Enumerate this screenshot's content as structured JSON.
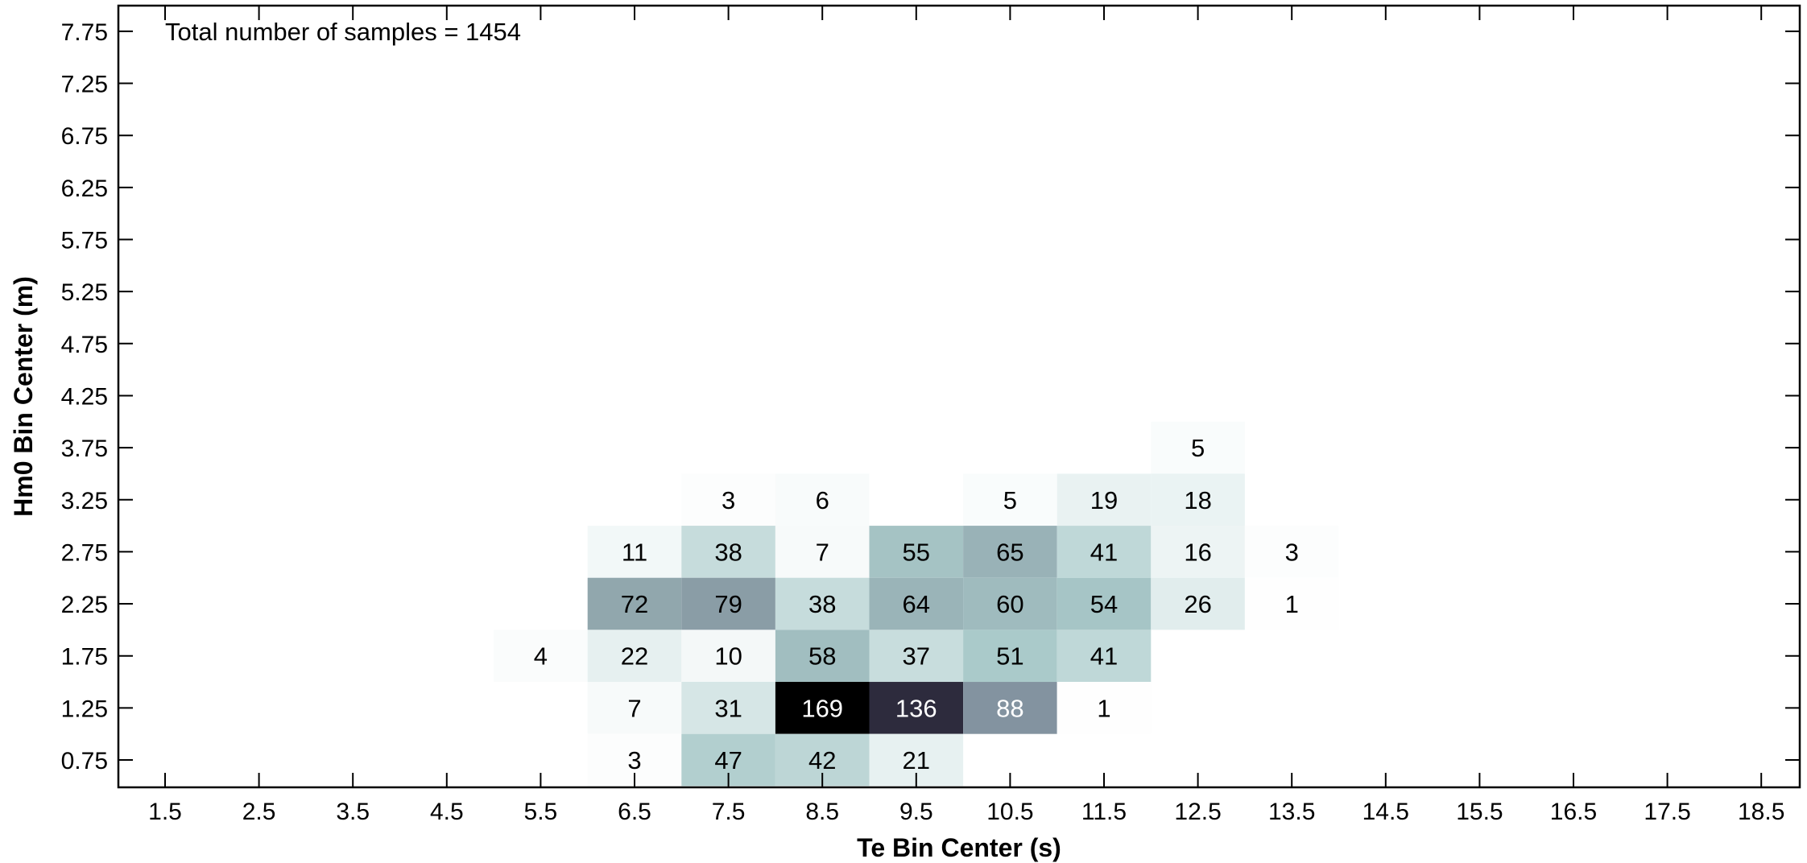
{
  "chart_data": {
    "type": "heatmap",
    "title": "",
    "xlabel": "Te Bin Center (s)",
    "ylabel": "Hm0 Bin Center (m)",
    "annotation": "Total number of samples = 1454",
    "x_ticks": [
      1.5,
      2.5,
      3.5,
      4.5,
      5.5,
      6.5,
      7.5,
      8.5,
      9.5,
      10.5,
      11.5,
      12.5,
      13.5,
      14.5,
      15.5,
      16.5,
      17.5,
      18.5
    ],
    "y_ticks": [
      0.75,
      1.25,
      1.75,
      2.25,
      2.75,
      3.25,
      3.75,
      4.25,
      4.75,
      5.25,
      5.75,
      6.25,
      6.75,
      7.25,
      7.75
    ],
    "x_bin_width": 1.0,
    "y_bin_width": 0.5,
    "colormap": "bone_r",
    "grid": false,
    "colors": {
      "min": "#ffffff",
      "mid": "#a3c3c3",
      "dark": "#2a2a3e",
      "max": "#000000"
    },
    "cells": [
      {
        "te": 12.5,
        "hm0": 3.75,
        "count": 5
      },
      {
        "te": 7.5,
        "hm0": 3.25,
        "count": 3
      },
      {
        "te": 8.5,
        "hm0": 3.25,
        "count": 6
      },
      {
        "te": 10.5,
        "hm0": 3.25,
        "count": 5
      },
      {
        "te": 11.5,
        "hm0": 3.25,
        "count": 19
      },
      {
        "te": 12.5,
        "hm0": 3.25,
        "count": 18
      },
      {
        "te": 6.5,
        "hm0": 2.75,
        "count": 11
      },
      {
        "te": 7.5,
        "hm0": 2.75,
        "count": 38
      },
      {
        "te": 8.5,
        "hm0": 2.75,
        "count": 7
      },
      {
        "te": 9.5,
        "hm0": 2.75,
        "count": 55
      },
      {
        "te": 10.5,
        "hm0": 2.75,
        "count": 65
      },
      {
        "te": 11.5,
        "hm0": 2.75,
        "count": 41
      },
      {
        "te": 12.5,
        "hm0": 2.75,
        "count": 16
      },
      {
        "te": 13.5,
        "hm0": 2.75,
        "count": 3
      },
      {
        "te": 6.5,
        "hm0": 2.25,
        "count": 72
      },
      {
        "te": 7.5,
        "hm0": 2.25,
        "count": 79
      },
      {
        "te": 8.5,
        "hm0": 2.25,
        "count": 38
      },
      {
        "te": 9.5,
        "hm0": 2.25,
        "count": 64
      },
      {
        "te": 10.5,
        "hm0": 2.25,
        "count": 60
      },
      {
        "te": 11.5,
        "hm0": 2.25,
        "count": 54
      },
      {
        "te": 12.5,
        "hm0": 2.25,
        "count": 26
      },
      {
        "te": 13.5,
        "hm0": 2.25,
        "count": 1
      },
      {
        "te": 5.5,
        "hm0": 1.75,
        "count": 4
      },
      {
        "te": 6.5,
        "hm0": 1.75,
        "count": 22
      },
      {
        "te": 7.5,
        "hm0": 1.75,
        "count": 10
      },
      {
        "te": 8.5,
        "hm0": 1.75,
        "count": 58
      },
      {
        "te": 9.5,
        "hm0": 1.75,
        "count": 37
      },
      {
        "te": 10.5,
        "hm0": 1.75,
        "count": 51
      },
      {
        "te": 11.5,
        "hm0": 1.75,
        "count": 41
      },
      {
        "te": 6.5,
        "hm0": 1.25,
        "count": 7
      },
      {
        "te": 7.5,
        "hm0": 1.25,
        "count": 31
      },
      {
        "te": 8.5,
        "hm0": 1.25,
        "count": 169
      },
      {
        "te": 9.5,
        "hm0": 1.25,
        "count": 136
      },
      {
        "te": 10.5,
        "hm0": 1.25,
        "count": 88
      },
      {
        "te": 11.5,
        "hm0": 1.25,
        "count": 1
      },
      {
        "te": 6.5,
        "hm0": 0.75,
        "count": 3
      },
      {
        "te": 7.5,
        "hm0": 0.75,
        "count": 47
      },
      {
        "te": 8.5,
        "hm0": 0.75,
        "count": 42
      },
      {
        "te": 9.5,
        "hm0": 0.75,
        "count": 21
      }
    ]
  }
}
